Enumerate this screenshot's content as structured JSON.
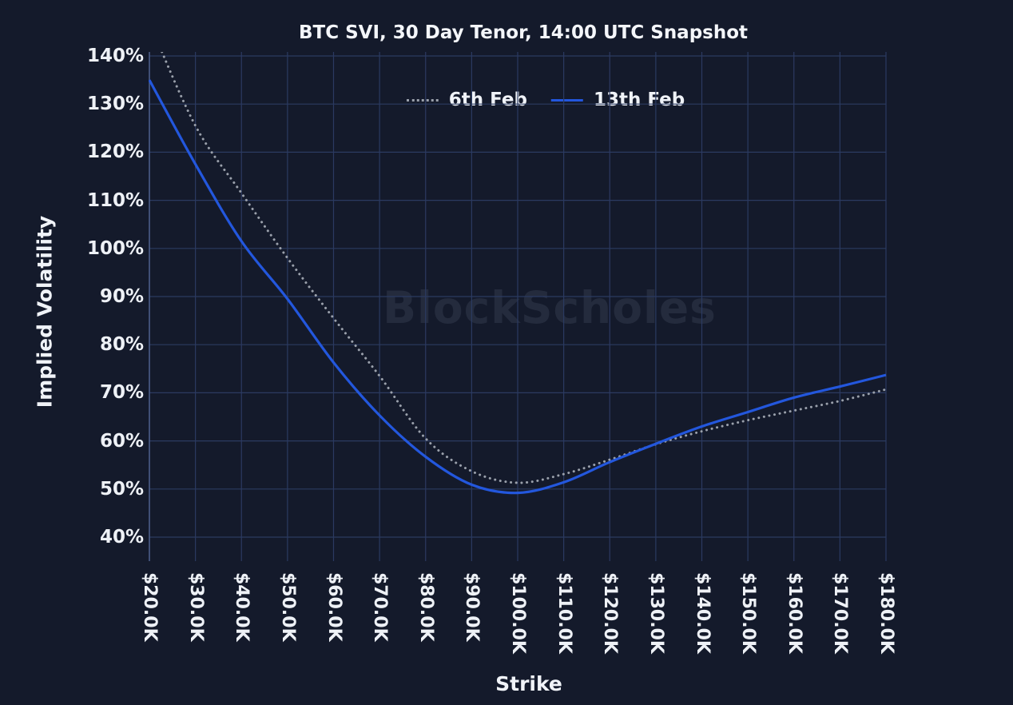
{
  "chart_data": {
    "type": "line",
    "title": "BTC SVI, 30 Day Tenor, 14:00 UTC Snapshot",
    "xlabel": "Strike",
    "ylabel": "Implied Volatility",
    "watermark": "BlockScholes",
    "legend_position": "top-center",
    "grid": true,
    "x_strikes_k": [
      20,
      30,
      40,
      50,
      60,
      70,
      80,
      90,
      100,
      110,
      120,
      130,
      140,
      150,
      160,
      170,
      180
    ],
    "x_tick_labels": [
      "$20.0K",
      "$30.0K",
      "$40.0K",
      "$50.0K",
      "$60.0K",
      "$70.0K",
      "$80.0K",
      "$90.0K",
      "$100.0K",
      "$110.0K",
      "$120.0K",
      "$130.0K",
      "$140.0K",
      "$150.0K",
      "$160.0K",
      "$170.0K",
      "$180.0K"
    ],
    "y_ticks": [
      40,
      50,
      60,
      70,
      80,
      90,
      100,
      110,
      120,
      130,
      140
    ],
    "y_tick_suffix": "%",
    "ylim": [
      35,
      146
    ],
    "series": [
      {
        "name": "6th Feb",
        "style": "dotted",
        "color": "#9aa0ab",
        "values": [
          147,
          125.5,
          111.5,
          98,
          85.5,
          73.5,
          60.5,
          53.7,
          51.3,
          53.1,
          56.1,
          59.3,
          62,
          64.3,
          66.3,
          68.3,
          70.7
        ]
      },
      {
        "name": "13th Feb",
        "style": "solid",
        "color": "#2357dd",
        "values": [
          135,
          117.5,
          101.5,
          89.5,
          76.3,
          65.3,
          56.7,
          50.9,
          49.2,
          51.4,
          55.6,
          59.4,
          63,
          66,
          69,
          71.3,
          73.7
        ]
      }
    ],
    "colors": {
      "background": "#141a2b",
      "grid": "#2b3a61",
      "axis_line": "#4a5c86",
      "text": "#eef1f6"
    }
  }
}
